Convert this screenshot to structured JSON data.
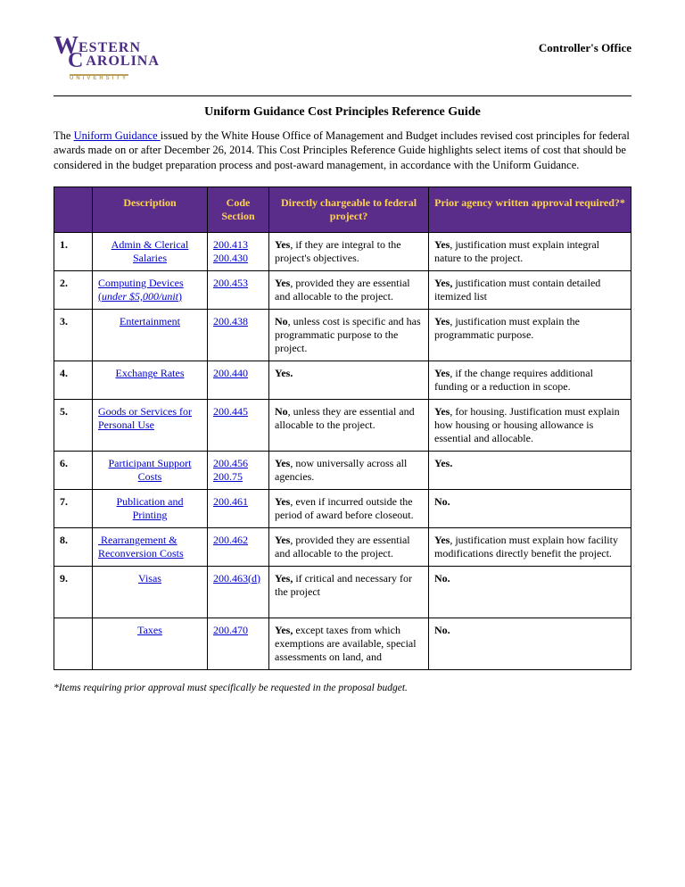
{
  "header": {
    "office": "Controller's Office",
    "logo": {
      "line1_big": "W",
      "line1_rest": "ESTERN",
      "line2_big": "C",
      "line2_rest": "AROLINA",
      "sub": "UNIVERSITY"
    }
  },
  "title": "Uniform Guidance Cost Principles Reference Guide",
  "intro": {
    "link_text": "Uniform Guidance ",
    "prefix": "The ",
    "body": "issued by the White House Office of Management and Budget includes revised cost principles for federal awards made on or after December 26, 2014. This Cost Principles Reference Guide highlights select items of cost that should be considered in the budget preparation process and post-award management, in accordance with the Uniform Guidance."
  },
  "table": {
    "header_bg": "#5b2d8a",
    "header_fg": "#ffd24d",
    "columns": [
      "",
      "Description",
      "Code Section",
      "Directly chargeable to federal project?",
      "Prior agency written approval required?*"
    ],
    "rows": [
      {
        "num": "1.",
        "desc_html": "<span class='desc-link'>Admin &amp; Clerical <br>Salaries</span>",
        "desc_align": "center",
        "code_html": "<span class='code-link'>200.413</span><br><span class='code-link'>200.430</span>",
        "charge_html": "<span class='bold'>Yes</span>, if they are integral to the project's objectives.",
        "approval_html": "<span class='bold'>Yes</span>, justification must explain integral nature to the project."
      },
      {
        "num": "2.",
        "desc_html": "<span class='desc-link'>Computing Devices</span><br><span class='desc-link'>(<em>under $5,000/unit</em>)</span>",
        "desc_align": "left",
        "code_html": "<span class='code-link'>200.453</span>",
        "charge_html": "<span class='bold'>Yes</span>, provided they are essential and allocable to the project.",
        "approval_html": "<span class='bold'>Yes,</span> justification must contain detailed itemized list"
      },
      {
        "num": "3.",
        "desc_html": "<span class='desc-link'>Entertainment</span>",
        "desc_align": "center",
        "code_html": "<span class='code-link'>200.438</span>",
        "charge_html": "<span class='bold'>No</span>, unless cost is specific and  has programmatic purpose to  the project.",
        "approval_html": "<span class='bold'>Yes</span>, justification must explain the programmatic purpose."
      },
      {
        "num": "4.",
        "desc_html": "<span class='desc-link'>Exchange Rates</span>",
        "desc_align": "center",
        "code_html": "<span class='code-link'>200.440</span>",
        "charge_html": "<span class='bold'>Yes.</span>",
        "approval_html": "<span class='bold'>Yes</span>, if the change requires additional funding or a reduction in scope."
      },
      {
        "num": "5.",
        "desc_html": "<span class='desc-link'>Goods or Services  for Personal Use</span>",
        "desc_align": "left",
        "code_html": "<span class='code-link'>200.445</span>",
        "charge_html": "<span class='bold'>No</span>, unless they are essential and allocable to the project.",
        "approval_html": "<span class='bold'>Yes</span>, for housing. Justification must explain how housing or housing allowance is essential and allocable."
      },
      {
        "num": "6.",
        "desc_html": "<span class='desc-link'>Participant Support <br>Costs</span>",
        "desc_align": "center",
        "code_html": "<span class='code-link'>200.456</span><br><span class='code-link'>200.75</span>",
        "charge_html": "<span class='bold'>Yes</span>, now universally across all agencies.",
        "approval_html": "<span class='bold'>Yes.</span>"
      },
      {
        "num": "7.",
        "desc_html": "<span class='desc-link'>Publication and<br>Printing</span>",
        "desc_align": "center",
        "code_html": "<span class='code-link'>200.461</span>",
        "charge_html": "<span class='bold'>Yes</span>, even if incurred outside  the period of award before  closeout.",
        "approval_html": "<span class='bold'>No.</span>"
      },
      {
        "num": "8.",
        "desc_html": "<span class='desc-link'>&nbsp;Rearrangement &amp; Reconversion Costs</span>",
        "desc_align": "left",
        "code_html": "<span class='code-link'>200.462</span>",
        "charge_html": "<span class='bold'>Yes</span>, provided they are essential and allocable to the project.",
        "approval_html": "<span class='bold'>Yes</span>, justification must explain how facility modifications directly benefit the project."
      },
      {
        "num": "9.",
        "desc_html": "<span class='desc-link'>Visas</span>",
        "desc_align": "center",
        "code_html": "<span class='code-link'>200.463(d)</span>",
        "charge_html": "<span class='bold'>Yes,</span> if critical and necessary for the project<br><br>",
        "approval_html": "<span class='bold'>No.</span>"
      },
      {
        "num": "",
        "desc_html": "<span class='desc-link'>Taxes</span>",
        "desc_align": "center",
        "code_html": "<span class='code-link'>200.470</span>",
        "charge_html": "<span class='bold'>Yes,</span> except taxes from which  exemptions are available,  special assessments on land,  and",
        "approval_html": "<span class='bold'>No.</span>"
      }
    ]
  },
  "footnote": "*Items requiring prior approval must specifically be requested in the proposal budget."
}
